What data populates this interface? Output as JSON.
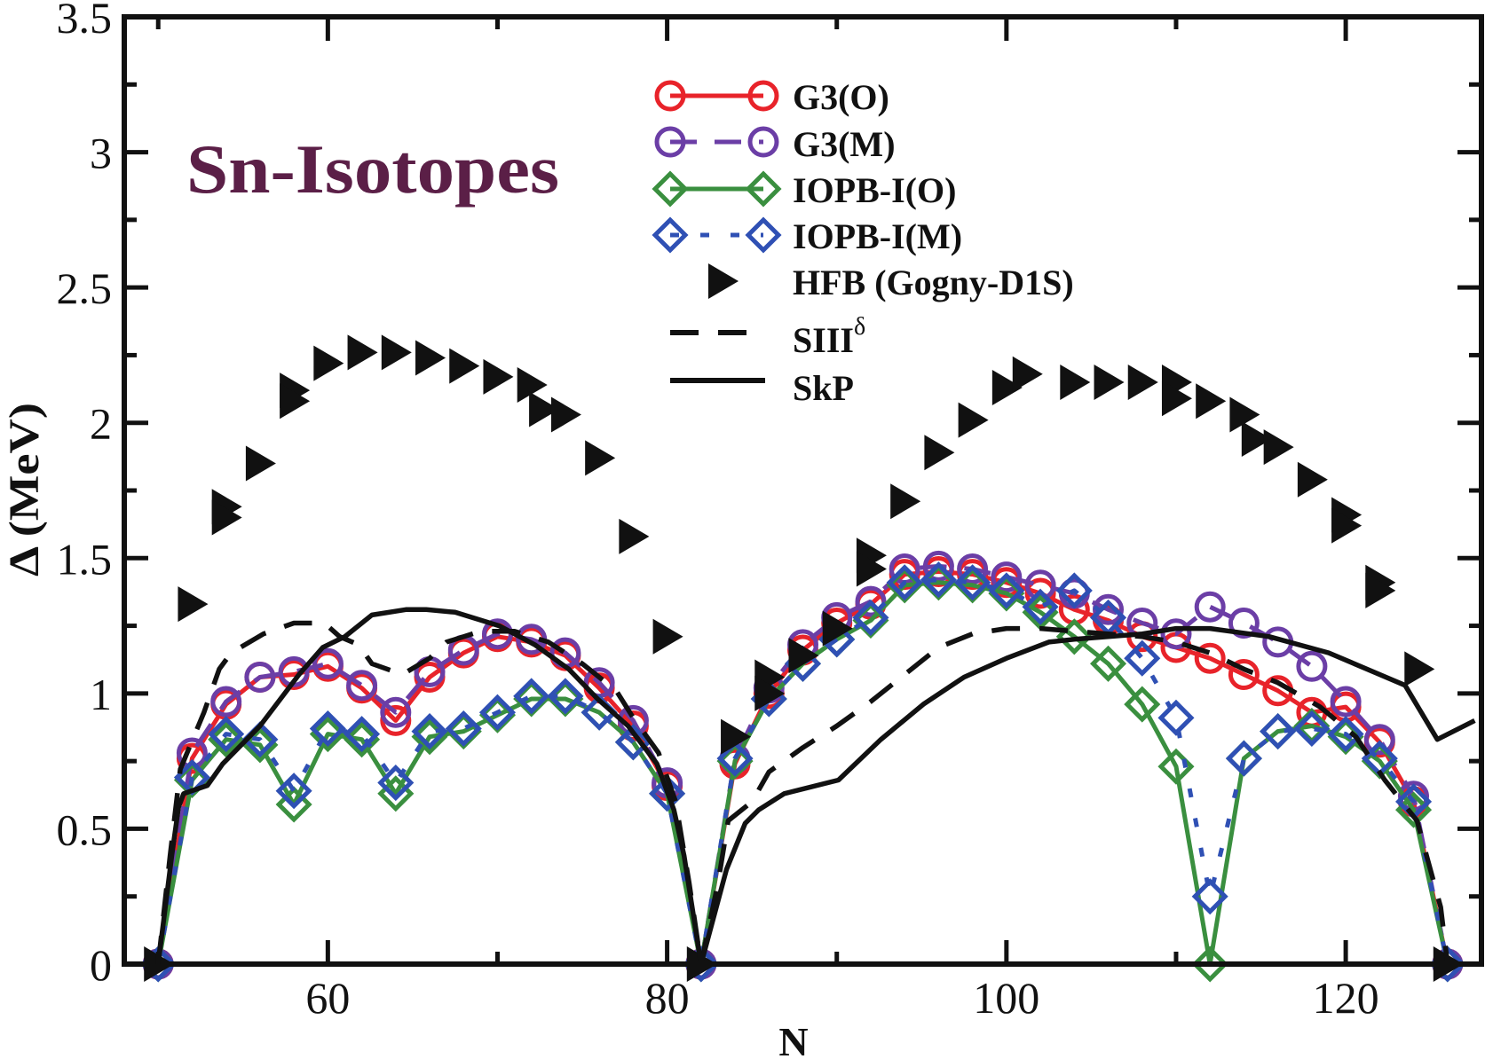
{
  "chart_data": {
    "type": "line",
    "annotation": "Sn-Isotopes",
    "annotation_color": "#5b1f47",
    "xlabel": "N",
    "ylabel": "Δ (MeV)",
    "xlim": [
      48,
      128
    ],
    "ylim": [
      0,
      3.5
    ],
    "grid": false,
    "legend_position": "top-center",
    "x_ticks": {
      "major": [
        60,
        80,
        100,
        120
      ],
      "labels": [
        "60",
        "80",
        "100",
        "120"
      ],
      "minor": [
        50,
        70,
        90,
        110
      ]
    },
    "y_ticks": {
      "major": [
        0,
        0.5,
        1,
        1.5,
        2,
        2.5,
        3,
        3.5
      ],
      "labels": [
        "0",
        "0.5",
        "1",
        "1.5",
        "2",
        "2.5",
        "3",
        "3.5"
      ],
      "minor": [
        0.25,
        0.75,
        1.25,
        1.75,
        2.25,
        2.75,
        3.25
      ]
    },
    "series": [
      {
        "name": "G3(O)",
        "color": "#e8232a",
        "line": "solid",
        "marker": "circle",
        "x": [
          50,
          52,
          54,
          56,
          58,
          60,
          62,
          64,
          66,
          68,
          70,
          72,
          74,
          76,
          78,
          80,
          82,
          84,
          86,
          88,
          90,
          92,
          94,
          96,
          98,
          100,
          102,
          104,
          106,
          108,
          110,
          112,
          114,
          116,
          118,
          120,
          122,
          124,
          126
        ],
        "y": [
          0,
          0.76,
          0.96,
          1.06,
          1.07,
          1.1,
          1.02,
          0.9,
          1.06,
          1.15,
          1.21,
          1.19,
          1.14,
          1.02,
          0.88,
          0.66,
          0,
          0.74,
          1.0,
          1.16,
          1.26,
          1.33,
          1.44,
          1.45,
          1.44,
          1.41,
          1.37,
          1.31,
          1.27,
          1.21,
          1.17,
          1.13,
          1.07,
          1.01,
          0.93,
          0.95,
          0.82,
          0.6,
          0
        ]
      },
      {
        "name": "G3(M)",
        "color": "#6b3ea6",
        "line": "long-dash",
        "marker": "circle",
        "x": [
          50,
          52,
          54,
          56,
          58,
          60,
          62,
          64,
          66,
          68,
          70,
          72,
          74,
          76,
          78,
          80,
          82,
          84,
          86,
          88,
          90,
          92,
          94,
          96,
          98,
          100,
          102,
          104,
          106,
          108,
          110,
          112,
          114,
          116,
          118,
          120,
          122,
          124,
          126
        ],
        "y": [
          0,
          0.78,
          0.97,
          1.06,
          1.08,
          1.11,
          1.03,
          0.93,
          1.08,
          1.16,
          1.22,
          1.2,
          1.15,
          1.04,
          0.9,
          0.67,
          0,
          0.76,
          1.02,
          1.18,
          1.28,
          1.34,
          1.46,
          1.47,
          1.46,
          1.43,
          1.4,
          1.37,
          1.31,
          1.26,
          1.22,
          1.32,
          1.26,
          1.19,
          1.1,
          0.97,
          0.83,
          0.62,
          0
        ]
      },
      {
        "name": "IOPB-I(O)",
        "color": "#3a8f3f",
        "line": "solid",
        "marker": "diamond",
        "x": [
          50,
          52,
          54,
          56,
          58,
          60,
          62,
          64,
          66,
          68,
          70,
          72,
          74,
          76,
          78,
          80,
          82,
          84,
          86,
          88,
          90,
          92,
          94,
          96,
          98,
          100,
          102,
          104,
          106,
          108,
          110,
          112,
          114,
          116,
          118,
          120,
          122,
          124,
          126
        ],
        "y": [
          0,
          0.68,
          0.83,
          0.81,
          0.59,
          0.85,
          0.83,
          0.63,
          0.84,
          0.86,
          0.92,
          0.98,
          0.98,
          0.93,
          0.82,
          0.63,
          0,
          0.75,
          0.98,
          1.11,
          1.2,
          1.27,
          1.4,
          1.41,
          1.4,
          1.37,
          1.3,
          1.21,
          1.11,
          0.96,
          0.73,
          0.0,
          0.76,
          0.86,
          0.88,
          0.84,
          0.75,
          0.57,
          0
        ]
      },
      {
        "name": "IOPB-I(M)",
        "color": "#2f50b4",
        "line": "dotted",
        "marker": "diamond",
        "x": [
          50,
          52,
          54,
          56,
          58,
          60,
          62,
          64,
          66,
          68,
          70,
          72,
          74,
          76,
          78,
          80,
          82,
          84,
          86,
          88,
          90,
          92,
          94,
          96,
          98,
          100,
          102,
          104,
          106,
          108,
          110,
          112,
          114,
          116,
          118,
          120,
          122,
          124,
          126
        ],
        "y": [
          0,
          0.69,
          0.85,
          0.83,
          0.64,
          0.87,
          0.85,
          0.67,
          0.86,
          0.87,
          0.93,
          0.99,
          0.99,
          0.93,
          0.82,
          0.63,
          0,
          0.76,
          0.98,
          1.11,
          1.2,
          1.28,
          1.41,
          1.42,
          1.41,
          1.38,
          1.32,
          1.38,
          1.28,
          1.13,
          0.91,
          0.25,
          0.76,
          0.86,
          0.87,
          0.85,
          0.76,
          0.6,
          0
        ]
      },
      {
        "name": "HFB (Gogny-D1S)",
        "color": "#111111",
        "line": "none",
        "marker": "triangle-right",
        "x": [
          50,
          52,
          54,
          54,
          56,
          58,
          58,
          60,
          62,
          64,
          66,
          68,
          70,
          72,
          72.7,
          74,
          76,
          78,
          80,
          82,
          84,
          86,
          86,
          88,
          90,
          92,
          92,
          94,
          96,
          98,
          100,
          101.2,
          104,
          106,
          108,
          110,
          110,
          112,
          114,
          114.7,
          116,
          118,
          120,
          120,
          122,
          122,
          124.3,
          126
        ],
        "y": [
          0,
          1.33,
          1.69,
          1.65,
          1.85,
          2.12,
          2.08,
          2.22,
          2.26,
          2.26,
          2.24,
          2.21,
          2.17,
          2.14,
          2.05,
          2.03,
          1.87,
          1.58,
          1.21,
          0,
          0.84,
          1.06,
          1.0,
          1.14,
          1.24,
          1.51,
          1.46,
          1.71,
          1.89,
          2.01,
          2.13,
          2.18,
          2.15,
          2.15,
          2.15,
          2.15,
          2.09,
          2.08,
          2.03,
          1.94,
          1.91,
          1.79,
          1.66,
          1.62,
          1.41,
          1.38,
          1.09,
          0
        ]
      },
      {
        "name": "SIII",
        "name_superscript": "δ",
        "color": "#111111",
        "line": "dashed",
        "marker": "none",
        "x": [
          50,
          50.7,
          51.3,
          52.7,
          53.6,
          54.3,
          56.2,
          58,
          59.8,
          60.7,
          61.8,
          62.6,
          64.4,
          66,
          67,
          69,
          71,
          73,
          75,
          77,
          78,
          79.5,
          80.5,
          81.3,
          82,
          83,
          83.6,
          85,
          86,
          88,
          90,
          92,
          94,
          96,
          98,
          100,
          102,
          104,
          106,
          108,
          110,
          112,
          114,
          116,
          118.5,
          120.6,
          122.3,
          124.2,
          125.6,
          126
        ],
        "y": [
          0,
          0.4,
          0.72,
          0.93,
          1.09,
          1.15,
          1.22,
          1.26,
          1.26,
          1.21,
          1.18,
          1.11,
          1.07,
          1.13,
          1.19,
          1.23,
          1.23,
          1.19,
          1.11,
          1.01,
          0.91,
          0.78,
          0.6,
          0.3,
          0,
          0.3,
          0.53,
          0.6,
          0.71,
          0.8,
          0.88,
          0.97,
          1.07,
          1.17,
          1.22,
          1.24,
          1.24,
          1.23,
          1.22,
          1.21,
          1.19,
          1.15,
          1.09,
          1.04,
          0.95,
          0.84,
          0.68,
          0.53,
          0.21,
          0
        ]
      },
      {
        "name": "SkP",
        "color": "#111111",
        "line": "solid",
        "marker": "none",
        "x": [
          50,
          50.8,
          51.2,
          51.5,
          52.9,
          53.8,
          56,
          58.3,
          59.7,
          61,
          62.6,
          64.6,
          65.8,
          67.5,
          70.1,
          72.2,
          74.2,
          75.9,
          77.7,
          79.4,
          80.4,
          81,
          82,
          83.5,
          84.6,
          85.4,
          86.9,
          90.1,
          92.6,
          95.1,
          97.5,
          100,
          102.5,
          104,
          106,
          108,
          110,
          112,
          115.5,
          119,
          123.5,
          125.4,
          127.6
        ],
        "y": [
          0,
          0.4,
          0.58,
          0.63,
          0.66,
          0.74,
          0.88,
          1.07,
          1.17,
          1.21,
          1.29,
          1.31,
          1.31,
          1.3,
          1.25,
          1.18,
          1.09,
          0.98,
          0.88,
          0.74,
          0.57,
          0.4,
          0,
          0.35,
          0.52,
          0.57,
          0.63,
          0.68,
          0.83,
          0.96,
          1.06,
          1.13,
          1.19,
          1.2,
          1.21,
          1.22,
          1.24,
          1.24,
          1.21,
          1.15,
          1.03,
          0.83,
          0.9
        ]
      }
    ]
  }
}
